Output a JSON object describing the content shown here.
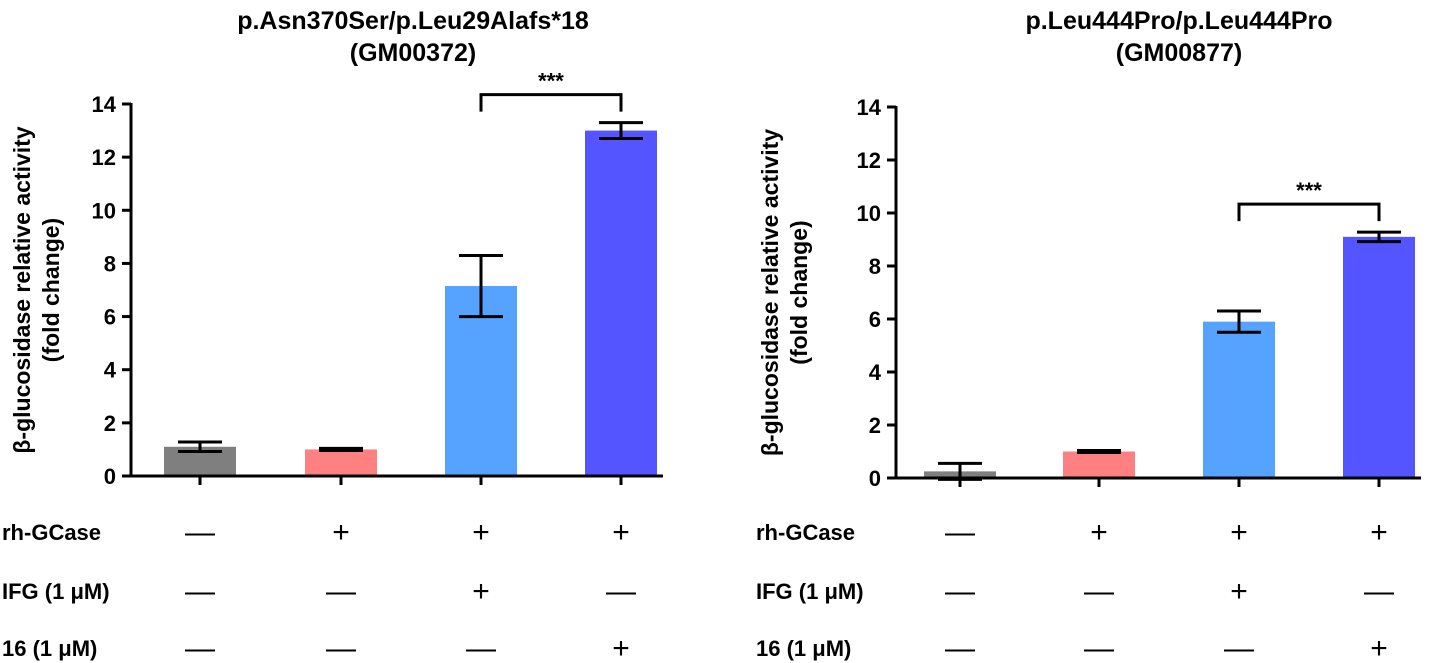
{
  "chart_data": [
    {
      "type": "bar",
      "title": "p.Asn370Ser/p.Leu29Alafs*18",
      "subtitle": "(GM00372)",
      "ylabel_line1": "β-glucosidase relative activity",
      "ylabel_line2": "(fold change)",
      "ylim": [
        0,
        14
      ],
      "yticks": [
        "0",
        "2",
        "4",
        "6",
        "8",
        "10",
        "12",
        "14"
      ],
      "values": [
        1.1,
        1.0,
        7.15,
        13.0
      ],
      "errors": [
        0.18,
        0.04,
        1.15,
        0.3
      ],
      "colors": [
        "#7f7f7f",
        "#ff8080",
        "#55a3ff",
        "#5555ff"
      ],
      "significance": {
        "from": 2,
        "to": 3,
        "label": "***"
      },
      "conditions": [
        {
          "label": "rh-GCase",
          "marks": [
            "—",
            "+",
            "+",
            "+"
          ]
        },
        {
          "label": "IFG (1 μM)",
          "marks": [
            "—",
            "—",
            "+",
            "—"
          ]
        },
        {
          "label": "16 (1 μM)",
          "marks": [
            "—",
            "—",
            "—",
            "+"
          ]
        }
      ]
    },
    {
      "type": "bar",
      "title": "p.Leu444Pro/p.Leu444Pro",
      "subtitle": "(GM00877)",
      "ylabel_line1": "β-glucosidase relative activity",
      "ylabel_line2": "(fold change)",
      "ylim": [
        0,
        14
      ],
      "yticks": [
        "0",
        "2",
        "4",
        "6",
        "8",
        "10",
        "12",
        "14"
      ],
      "values": [
        0.25,
        1.0,
        5.9,
        9.1
      ],
      "errors": [
        0.3,
        0.04,
        0.4,
        0.18
      ],
      "colors": [
        "#7f7f7f",
        "#ff8080",
        "#55a3ff",
        "#5555ff"
      ],
      "significance": {
        "from": 2,
        "to": 3,
        "label": "***"
      },
      "conditions": [
        {
          "label": "rh-GCase",
          "marks": [
            "—",
            "+",
            "+",
            "+"
          ]
        },
        {
          "label": "IFG (1 μM)",
          "marks": [
            "—",
            "—",
            "+",
            "—"
          ]
        },
        {
          "label": "16 (1 μM)",
          "marks": [
            "—",
            "—",
            "—",
            "+"
          ]
        }
      ]
    }
  ]
}
